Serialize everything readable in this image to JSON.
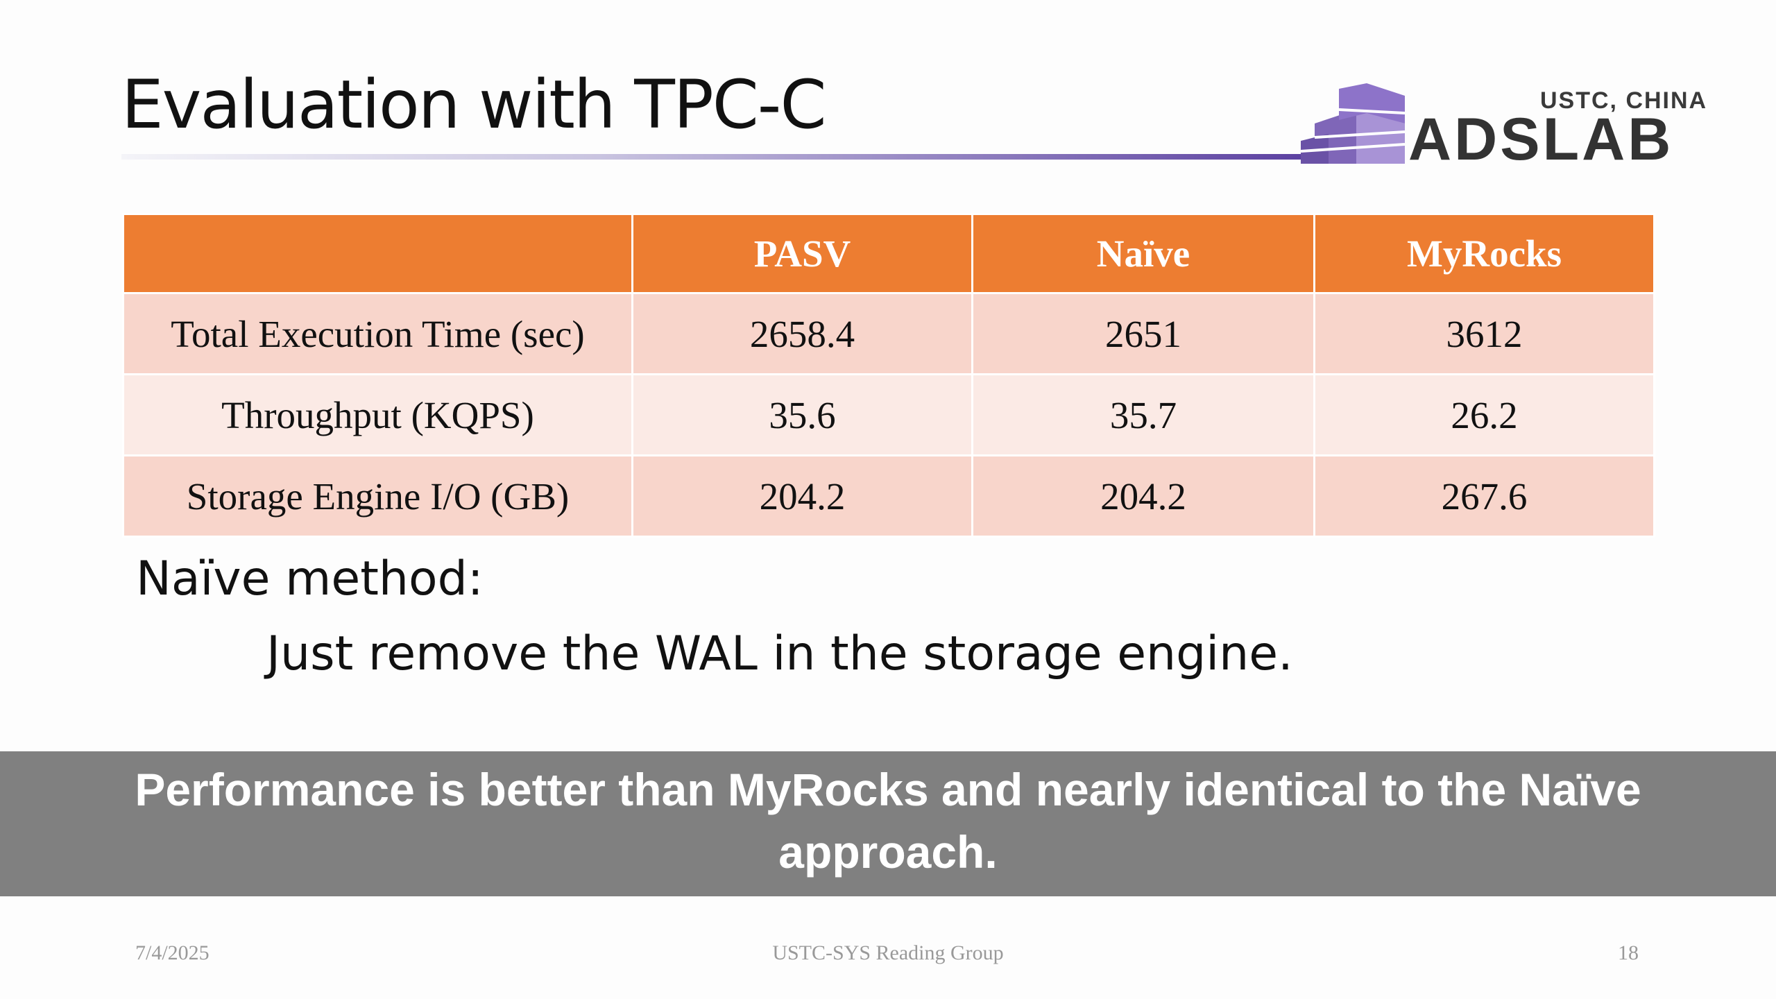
{
  "header": {
    "title": "Evaluation with TPC-C"
  },
  "logo": {
    "top": "USTC, CHINA",
    "name": "ADSLAB"
  },
  "table": {
    "columns": [
      "PASV",
      "Naïve",
      "MyRocks"
    ],
    "rows": [
      [
        "Total Execution Time (sec)",
        2658.4,
        2651,
        3612
      ],
      [
        "Throughput (KQPS)",
        35.6,
        35.7,
        26.2
      ],
      [
        "Storage Engine I/O (GB)",
        204.2,
        204.2,
        267.6
      ]
    ]
  },
  "body": {
    "heading": "Naïve method:",
    "text": "Just remove the WAL in the storage engine."
  },
  "caption": "Performance is better than MyRocks and nearly identical to the Naïve approach.",
  "footer": {
    "date": "7/4/2025",
    "group": "USTC-SYS Reading Group",
    "page": 18
  }
}
